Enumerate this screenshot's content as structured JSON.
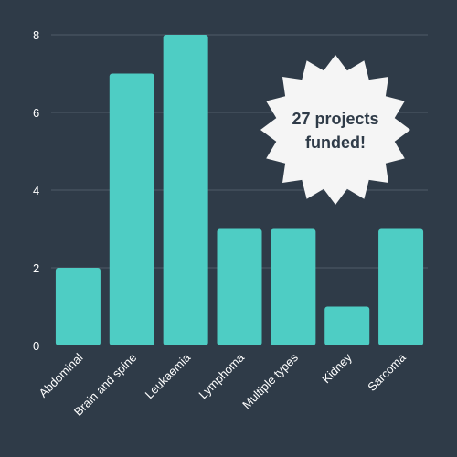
{
  "chart_data": {
    "type": "bar",
    "categories": [
      "Abdominal",
      "Brain and spine",
      "Leukaemia",
      "Lymphoma",
      "Multiple types",
      "Kidney",
      "Sarcoma"
    ],
    "values": [
      2,
      7,
      8,
      3,
      3,
      1,
      3
    ],
    "ylim": [
      0,
      8
    ],
    "yticks": [
      0,
      2,
      4,
      6,
      8
    ],
    "grid": true,
    "bar_color": "#4ecdc4",
    "background_color": "#2f3b48",
    "annotation": {
      "line1": "27 projects",
      "line2": "funded!",
      "shape": "starburst",
      "color": "#f5f5f5"
    }
  }
}
